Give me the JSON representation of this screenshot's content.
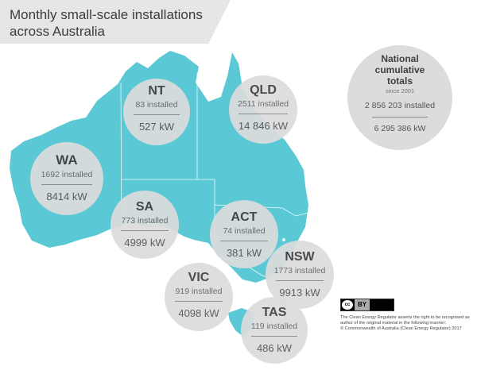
{
  "title": "Monthly small-scale installations across Australia",
  "colors": {
    "land": "#5bc8d6",
    "bubble": "#dcdcdc",
    "banner": "#e6e6e6"
  },
  "states": {
    "nt": {
      "name": "NT",
      "installed": "83 installed",
      "kw": "527 kW"
    },
    "qld": {
      "name": "QLD",
      "installed": "2511 installed",
      "kw": "14 846 kW"
    },
    "wa": {
      "name": "WA",
      "installed": "1692 installed",
      "kw": "8414 kW"
    },
    "sa": {
      "name": "SA",
      "installed": "773 installed",
      "kw": "4999 kW"
    },
    "act": {
      "name": "ACT",
      "installed": "74 installed",
      "kw": "381 kW"
    },
    "nsw": {
      "name": "NSW",
      "installed": "1773 installed",
      "kw": "9913 kW"
    },
    "vic": {
      "name": "VIC",
      "installed": "919 installed",
      "kw": "4098 kW"
    },
    "tas": {
      "name": "TAS",
      "installed": "119 installed",
      "kw": "486 kW"
    }
  },
  "national": {
    "heading": "National cumulative totals",
    "since": "since 2001",
    "installed": "2 856 203 installed",
    "kw": "6 295 386 kW"
  },
  "license": {
    "badge_cc": "cc",
    "badge_by": "BY",
    "line1": "The Clean Energy Regulator asserts the right to be recognised as author of the original material in the following manner:",
    "line2": "© Commonwealth of Australia (Clean Energy Regulator) 2017"
  }
}
